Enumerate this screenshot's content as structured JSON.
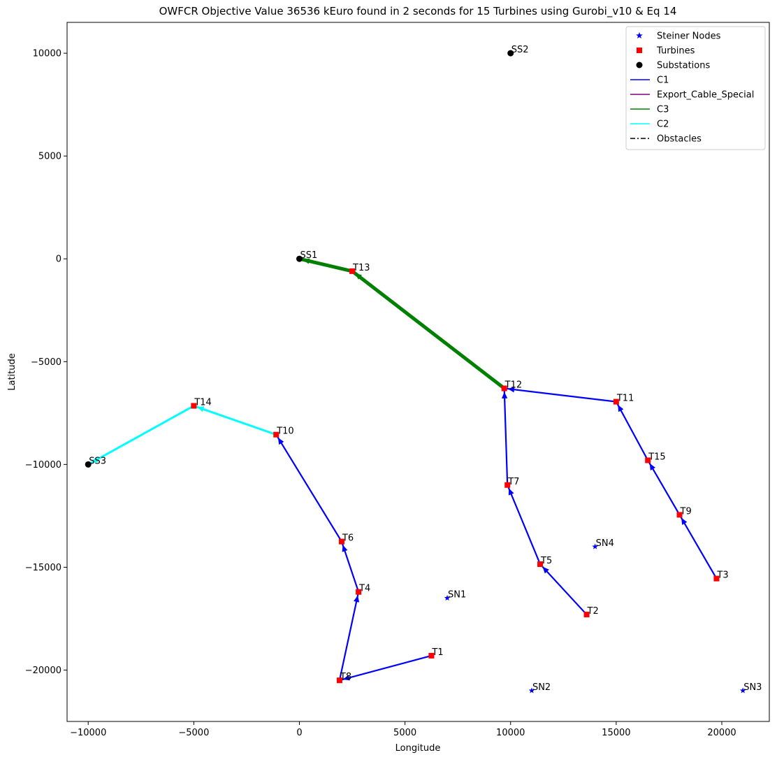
{
  "chart_data": {
    "type": "scatter",
    "title": "OWFCR Objective Value 36536 kEuro found in 2 seconds for 15 Turbines using Gurobi_v10 & Eq 14",
    "xlabel": "Longitude",
    "ylabel": "Latitude",
    "xlim": [
      -11000,
      22250
    ],
    "ylim": [
      -22500,
      11500
    ],
    "xticks": [
      -10000,
      -5000,
      0,
      5000,
      10000,
      15000,
      20000
    ],
    "yticks": [
      -20000,
      -15000,
      -10000,
      -5000,
      0,
      5000,
      10000
    ],
    "grid": false,
    "legend_position": "top-right",
    "colors": {
      "C1": "#0000ff",
      "Export_Cable_Special": "#800080",
      "C3": "#008000",
      "C2": "#00ffff",
      "turbine": "#ff0000",
      "steiner": "#0000ff",
      "substation": "#000000"
    },
    "legend": [
      {
        "label": "Steiner Nodes",
        "marker": "star",
        "color": "#0000ff"
      },
      {
        "label": "Turbines",
        "marker": "square",
        "color": "#ff0000"
      },
      {
        "label": "Substations",
        "marker": "circle",
        "color": "#000000"
      },
      {
        "label": "C1",
        "marker": "line",
        "color": "#0000ff"
      },
      {
        "label": "Export_Cable_Special",
        "marker": "line",
        "color": "#800080"
      },
      {
        "label": "C3",
        "marker": "line",
        "color": "#008000"
      },
      {
        "label": "C2",
        "marker": "line",
        "color": "#00ffff"
      },
      {
        "label": "Obstacles",
        "marker": "dashdot",
        "color": "#000000"
      }
    ],
    "substations": [
      {
        "label": "SS1",
        "x": 0,
        "y": 0
      },
      {
        "label": "SS2",
        "x": 10000,
        "y": 10000
      },
      {
        "label": "SS3",
        "x": -10000,
        "y": -10000
      }
    ],
    "turbines": [
      {
        "label": "T1",
        "x": 6250,
        "y": -19300
      },
      {
        "label": "T2",
        "x": 13600,
        "y": -17300
      },
      {
        "label": "T3",
        "x": 19750,
        "y": -15550
      },
      {
        "label": "T4",
        "x": 2800,
        "y": -16200
      },
      {
        "label": "T5",
        "x": 11400,
        "y": -14850
      },
      {
        "label": "T6",
        "x": 2000,
        "y": -13750
      },
      {
        "label": "T7",
        "x": 9850,
        "y": -11000
      },
      {
        "label": "T8",
        "x": 1900,
        "y": -20500
      },
      {
        "label": "T9",
        "x": 18000,
        "y": -12450
      },
      {
        "label": "T10",
        "x": -1100,
        "y": -8550
      },
      {
        "label": "T11",
        "x": 15000,
        "y": -6950
      },
      {
        "label": "T12",
        "x": 9700,
        "y": -6300
      },
      {
        "label": "T13",
        "x": 2500,
        "y": -600
      },
      {
        "label": "T14",
        "x": -5000,
        "y": -7150
      },
      {
        "label": "T15",
        "x": 16500,
        "y": -9800
      }
    ],
    "steiner_nodes": [
      {
        "label": "SN1",
        "x": 7000,
        "y": -16500
      },
      {
        "label": "SN2",
        "x": 11000,
        "y": -21000
      },
      {
        "label": "SN3",
        "x": 21000,
        "y": -21000
      },
      {
        "label": "SN4",
        "x": 14000,
        "y": -14000
      }
    ],
    "cables": [
      {
        "type": "C1",
        "from": "T1",
        "to": "T8"
      },
      {
        "type": "C1",
        "from": "T8",
        "to": "T4"
      },
      {
        "type": "C1",
        "from": "T4",
        "to": "T6"
      },
      {
        "type": "C1",
        "from": "T6",
        "to": "T10"
      },
      {
        "type": "C2",
        "from": "T10",
        "to": "T14"
      },
      {
        "type": "C2",
        "from": "T14",
        "to": "SS3"
      },
      {
        "type": "C1",
        "from": "T2",
        "to": "T5"
      },
      {
        "type": "C1",
        "from": "T5",
        "to": "T7"
      },
      {
        "type": "C1",
        "from": "T7",
        "to": "T12"
      },
      {
        "type": "C1",
        "from": "T3",
        "to": "T9"
      },
      {
        "type": "C1",
        "from": "T9",
        "to": "T15"
      },
      {
        "type": "C1",
        "from": "T15",
        "to": "T11"
      },
      {
        "type": "C1",
        "from": "T11",
        "to": "T12"
      },
      {
        "type": "C3",
        "from": "T12",
        "to": "T13"
      },
      {
        "type": "C3",
        "from": "T13",
        "to": "SS1"
      }
    ]
  }
}
